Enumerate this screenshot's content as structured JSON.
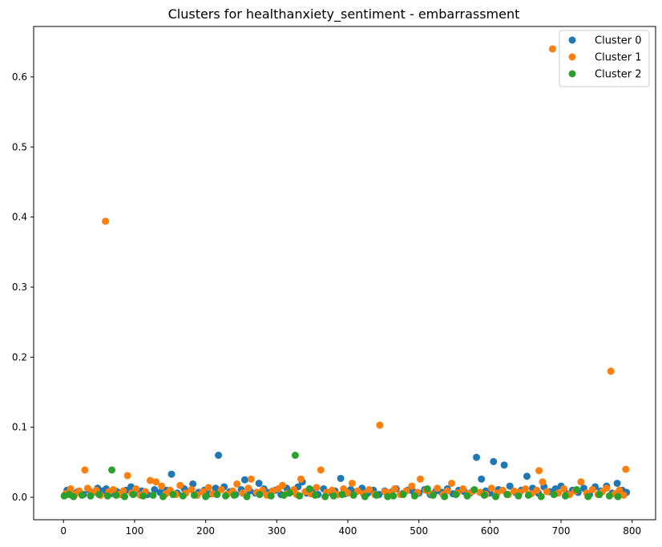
{
  "chart_data": {
    "type": "scatter",
    "title": "Clusters for healthanxiety_sentiment - embarrassment",
    "xlabel": "",
    "ylabel": "",
    "xlim": [
      -42,
      833
    ],
    "ylim": [
      -0.032,
      0.672
    ],
    "xticks": [
      0,
      100,
      200,
      300,
      400,
      500,
      600,
      700,
      800
    ],
    "yticks": [
      0.0,
      0.1,
      0.2,
      0.3,
      0.4,
      0.5,
      0.6
    ],
    "ytick_labels": [
      "0.0",
      "0.1",
      "0.2",
      "0.3",
      "0.4",
      "0.5",
      "0.6"
    ],
    "xtick_labels": [
      "0",
      "100",
      "200",
      "300",
      "400",
      "500",
      "600",
      "700",
      "800"
    ],
    "grid": false,
    "legend_position": "top-right",
    "series": [
      {
        "name": "Cluster 0",
        "color": "#1f77b4",
        "points": [
          [
            5,
            0.01
          ],
          [
            12,
            0.006
          ],
          [
            20,
            0.008
          ],
          [
            28,
            0.004
          ],
          [
            35,
            0.011
          ],
          [
            42,
            0.007
          ],
          [
            48,
            0.013
          ],
          [
            55,
            0.009
          ],
          [
            60,
            0.012
          ],
          [
            66,
            0.005
          ],
          [
            75,
            0.008
          ],
          [
            82,
            0.004
          ],
          [
            88,
            0.01
          ],
          [
            95,
            0.015
          ],
          [
            104,
            0.006
          ],
          [
            110,
            0.009
          ],
          [
            118,
            0.004
          ],
          [
            128,
            0.011
          ],
          [
            136,
            0.007
          ],
          [
            145,
            0.01
          ],
          [
            152,
            0.033
          ],
          [
            160,
            0.006
          ],
          [
            170,
            0.012
          ],
          [
            182,
            0.019
          ],
          [
            190,
            0.007
          ],
          [
            198,
            0.01
          ],
          [
            206,
            0.005
          ],
          [
            214,
            0.013
          ],
          [
            218,
            0.06
          ],
          [
            226,
            0.015
          ],
          [
            234,
            0.008
          ],
          [
            242,
            0.004
          ],
          [
            250,
            0.011
          ],
          [
            255,
            0.025
          ],
          [
            262,
            0.009
          ],
          [
            270,
            0.006
          ],
          [
            275,
            0.02
          ],
          [
            282,
            0.012
          ],
          [
            290,
            0.007
          ],
          [
            298,
            0.01
          ],
          [
            306,
            0.004
          ],
          [
            314,
            0.013
          ],
          [
            322,
            0.008
          ],
          [
            330,
            0.015
          ],
          [
            336,
            0.022
          ],
          [
            342,
            0.006
          ],
          [
            350,
            0.01
          ],
          [
            358,
            0.004
          ],
          [
            366,
            0.012
          ],
          [
            374,
            0.007
          ],
          [
            382,
            0.009
          ],
          [
            390,
            0.027
          ],
          [
            396,
            0.005
          ],
          [
            404,
            0.011
          ],
          [
            412,
            0.008
          ],
          [
            420,
            0.013
          ],
          [
            428,
            0.006
          ],
          [
            436,
            0.01
          ],
          [
            444,
            0.004
          ],
          [
            452,
            0.009
          ],
          [
            460,
            0.007
          ],
          [
            468,
            0.012
          ],
          [
            476,
            0.005
          ],
          [
            484,
            0.01
          ],
          [
            492,
            0.008
          ],
          [
            500,
            0.006
          ],
          [
            508,
            0.011
          ],
          [
            516,
            0.004
          ],
          [
            524,
            0.009
          ],
          [
            532,
            0.007
          ],
          [
            540,
            0.012
          ],
          [
            548,
            0.005
          ],
          [
            556,
            0.01
          ],
          [
            564,
            0.008
          ],
          [
            572,
            0.006
          ],
          [
            581,
            0.057
          ],
          [
            588,
            0.026
          ],
          [
            594,
            0.009
          ],
          [
            600,
            0.006
          ],
          [
            605,
            0.051
          ],
          [
            612,
            0.011
          ],
          [
            620,
            0.046
          ],
          [
            628,
            0.016
          ],
          [
            636,
            0.007
          ],
          [
            644,
            0.01
          ],
          [
            652,
            0.03
          ],
          [
            660,
            0.013
          ],
          [
            668,
            0.006
          ],
          [
            676,
            0.015
          ],
          [
            684,
            0.008
          ],
          [
            692,
            0.012
          ],
          [
            700,
            0.016
          ],
          [
            708,
            0.005
          ],
          [
            716,
            0.01
          ],
          [
            724,
            0.007
          ],
          [
            732,
            0.013
          ],
          [
            740,
            0.004
          ],
          [
            748,
            0.015
          ],
          [
            756,
            0.009
          ],
          [
            764,
            0.016
          ],
          [
            772,
            0.006
          ],
          [
            779,
            0.02
          ],
          [
            786,
            0.01
          ],
          [
            792,
            0.007
          ]
        ]
      },
      {
        "name": "Cluster 1",
        "color": "#ff7f0e",
        "points": [
          [
            3,
            0.005
          ],
          [
            10,
            0.012
          ],
          [
            16,
            0.004
          ],
          [
            22,
            0.009
          ],
          [
            30,
            0.039
          ],
          [
            34,
            0.013
          ],
          [
            40,
            0.006
          ],
          [
            46,
            0.01
          ],
          [
            52,
            0.003
          ],
          [
            59,
            0.394
          ],
          [
            64,
            0.008
          ],
          [
            70,
            0.011
          ],
          [
            78,
            0.004
          ],
          [
            84,
            0.009
          ],
          [
            90,
            0.031
          ],
          [
            96,
            0.006
          ],
          [
            102,
            0.012
          ],
          [
            108,
            0.003
          ],
          [
            115,
            0.008
          ],
          [
            122,
            0.024
          ],
          [
            130,
            0.022
          ],
          [
            138,
            0.016
          ],
          [
            144,
            0.005
          ],
          [
            150,
            0.01
          ],
          [
            158,
            0.004
          ],
          [
            164,
            0.017
          ],
          [
            172,
            0.006
          ],
          [
            180,
            0.011
          ],
          [
            188,
            0.003
          ],
          [
            196,
            0.008
          ],
          [
            204,
            0.014
          ],
          [
            210,
            0.005
          ],
          [
            222,
            0.011
          ],
          [
            230,
            0.004
          ],
          [
            238,
            0.009
          ],
          [
            244,
            0.019
          ],
          [
            252,
            0.006
          ],
          [
            260,
            0.013
          ],
          [
            264,
            0.026
          ],
          [
            272,
            0.007
          ],
          [
            280,
            0.01
          ],
          [
            286,
            0.003
          ],
          [
            294,
            0.009
          ],
          [
            302,
            0.012
          ],
          [
            308,
            0.017
          ],
          [
            316,
            0.006
          ],
          [
            324,
            0.011
          ],
          [
            328,
            0.004
          ],
          [
            334,
            0.026
          ],
          [
            340,
            0.008
          ],
          [
            348,
            0.005
          ],
          [
            356,
            0.014
          ],
          [
            362,
            0.039
          ],
          [
            370,
            0.007
          ],
          [
            378,
            0.01
          ],
          [
            386,
            0.004
          ],
          [
            394,
            0.012
          ],
          [
            400,
            0.006
          ],
          [
            406,
            0.02
          ],
          [
            414,
            0.009
          ],
          [
            422,
            0.005
          ],
          [
            430,
            0.011
          ],
          [
            438,
            0.004
          ],
          [
            445,
            0.103
          ],
          [
            452,
            0.008
          ],
          [
            458,
            0.006
          ],
          [
            466,
            0.012
          ],
          [
            474,
            0.004
          ],
          [
            482,
            0.009
          ],
          [
            490,
            0.016
          ],
          [
            498,
            0.007
          ],
          [
            502,
            0.026
          ],
          [
            510,
            0.01
          ],
          [
            518,
            0.005
          ],
          [
            526,
            0.013
          ],
          [
            534,
            0.004
          ],
          [
            540,
            0.009
          ],
          [
            546,
            0.02
          ],
          [
            554,
            0.006
          ],
          [
            562,
            0.012
          ],
          [
            570,
            0.005
          ],
          [
            576,
            0.009
          ],
          [
            586,
            0.007
          ],
          [
            594,
            0.004
          ],
          [
            602,
            0.013
          ],
          [
            610,
            0.006
          ],
          [
            618,
            0.01
          ],
          [
            626,
            0.004
          ],
          [
            634,
            0.009
          ],
          [
            642,
            0.007
          ],
          [
            650,
            0.012
          ],
          [
            658,
            0.005
          ],
          [
            666,
            0.01
          ],
          [
            669,
            0.038
          ],
          [
            674,
            0.022
          ],
          [
            680,
            0.008
          ],
          [
            688,
            0.64
          ],
          [
            696,
            0.006
          ],
          [
            704,
            0.012
          ],
          [
            712,
            0.004
          ],
          [
            720,
            0.009
          ],
          [
            728,
            0.022
          ],
          [
            736,
            0.006
          ],
          [
            744,
            0.011
          ],
          [
            752,
            0.004
          ],
          [
            758,
            0.008
          ],
          [
            764,
            0.013
          ],
          [
            770,
            0.18
          ],
          [
            776,
            0.005
          ],
          [
            782,
            0.01
          ],
          [
            788,
            0.003
          ],
          [
            791,
            0.04
          ]
        ]
      },
      {
        "name": "Cluster 2",
        "color": "#2ca02c",
        "points": [
          [
            1,
            0.002
          ],
          [
            8,
            0.004
          ],
          [
            14,
            0.001
          ],
          [
            26,
            0.003
          ],
          [
            38,
            0.002
          ],
          [
            50,
            0.004
          ],
          [
            62,
            0.002
          ],
          [
            68,
            0.039
          ],
          [
            74,
            0.003
          ],
          [
            86,
            0.001
          ],
          [
            98,
            0.004
          ],
          [
            112,
            0.002
          ],
          [
            126,
            0.003
          ],
          [
            140,
            0.001
          ],
          [
            154,
            0.004
          ],
          [
            168,
            0.002
          ],
          [
            184,
            0.003
          ],
          [
            200,
            0.001
          ],
          [
            216,
            0.004
          ],
          [
            228,
            0.002
          ],
          [
            240,
            0.003
          ],
          [
            258,
            0.001
          ],
          [
            276,
            0.004
          ],
          [
            292,
            0.002
          ],
          [
            310,
            0.003
          ],
          [
            318,
            0.006
          ],
          [
            326,
            0.06
          ],
          [
            332,
            0.002
          ],
          [
            346,
            0.012
          ],
          [
            354,
            0.003
          ],
          [
            368,
            0.001
          ],
          [
            380,
            0.002
          ],
          [
            392,
            0.004
          ],
          [
            408,
            0.003
          ],
          [
            424,
            0.001
          ],
          [
            440,
            0.003
          ],
          [
            456,
            0.001
          ],
          [
            464,
            0.002
          ],
          [
            478,
            0.004
          ],
          [
            494,
            0.002
          ],
          [
            512,
            0.012
          ],
          [
            520,
            0.003
          ],
          [
            536,
            0.001
          ],
          [
            552,
            0.004
          ],
          [
            568,
            0.002
          ],
          [
            578,
            0.011
          ],
          [
            592,
            0.003
          ],
          [
            608,
            0.001
          ],
          [
            624,
            0.004
          ],
          [
            640,
            0.002
          ],
          [
            654,
            0.003
          ],
          [
            672,
            0.001
          ],
          [
            690,
            0.004
          ],
          [
            706,
            0.002
          ],
          [
            722,
            0.011
          ],
          [
            738,
            0.001
          ],
          [
            754,
            0.004
          ],
          [
            768,
            0.002
          ],
          [
            780,
            0.001
          ]
        ]
      }
    ]
  }
}
